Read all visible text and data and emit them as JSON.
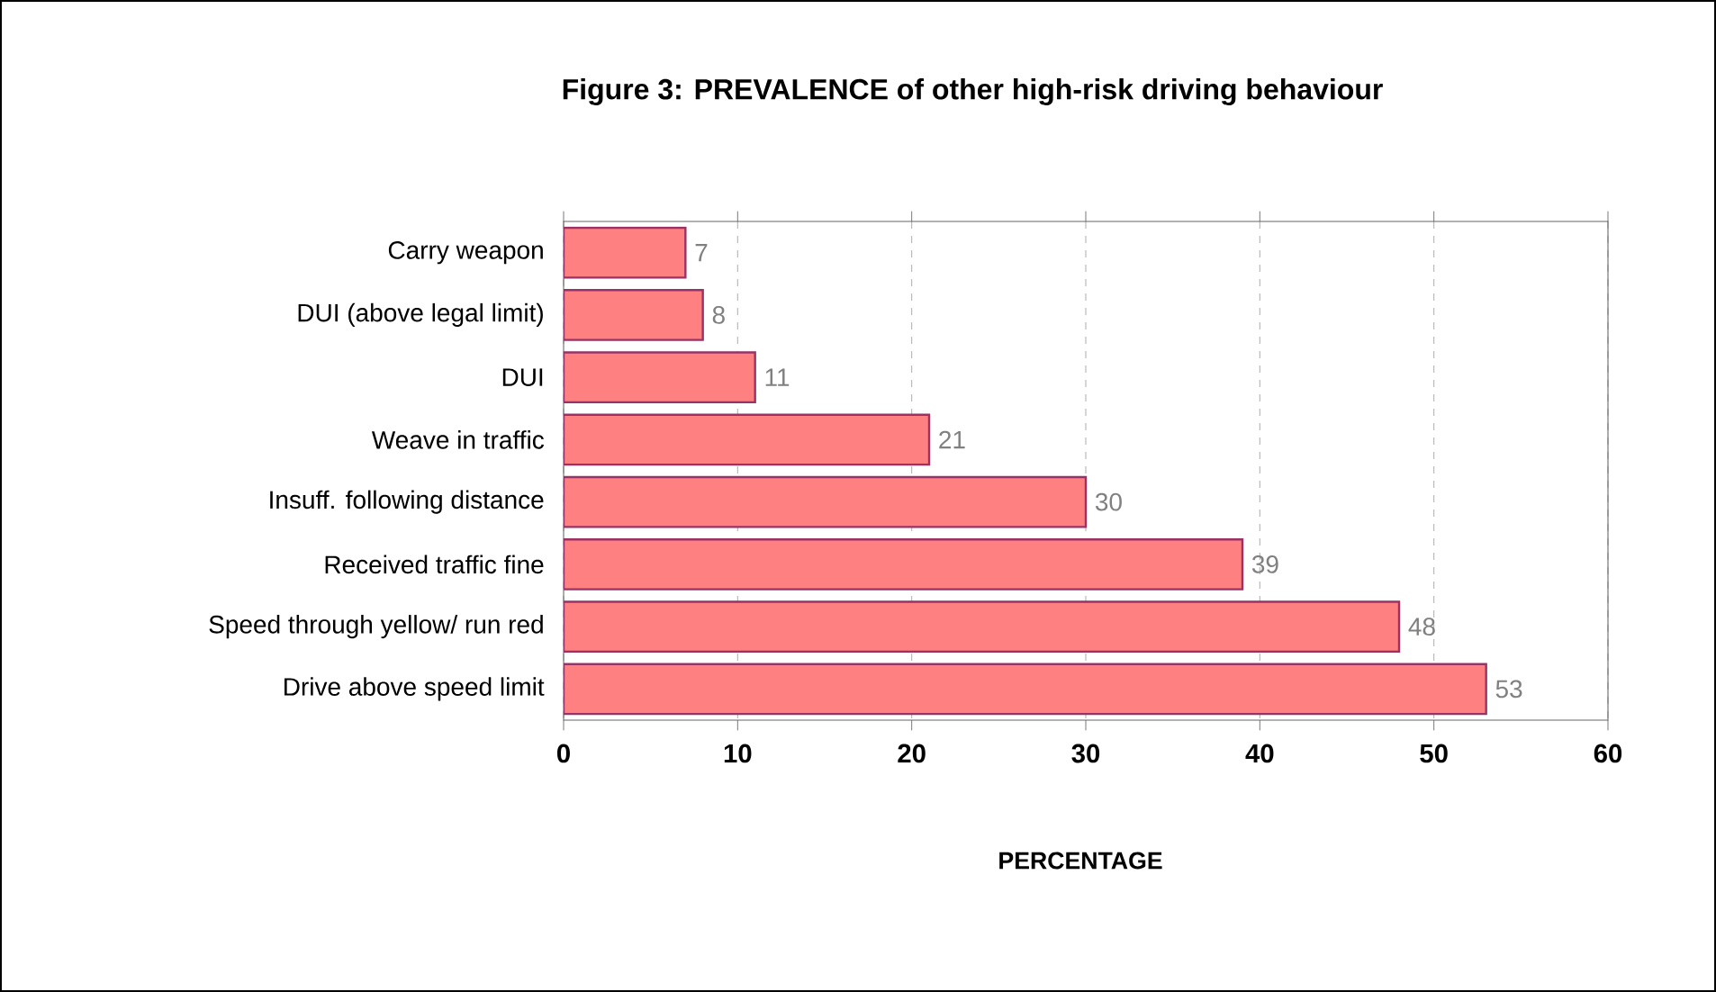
{
  "chart_data": {
    "type": "bar",
    "orientation": "horizontal",
    "title": "Figure 3: PREVALENCE of other high-risk driving behaviour",
    "xlabel": "PERCENTAGE",
    "categories": [
      "Carry weapon",
      "DUI (above legal limit)",
      "DUI",
      "Weave in traffic",
      "Insuff. following distance",
      "Received traffic fine",
      "Speed through yellow/ run red",
      "Drive above speed limit"
    ],
    "values": [
      7,
      8,
      11,
      21,
      30,
      39,
      48,
      53
    ],
    "color": "#ff8080",
    "xlim": [
      0,
      60
    ],
    "xticks": [
      0,
      10,
      20,
      30,
      40,
      50,
      60
    ],
    "grid": "x",
    "data_labels": true
  }
}
